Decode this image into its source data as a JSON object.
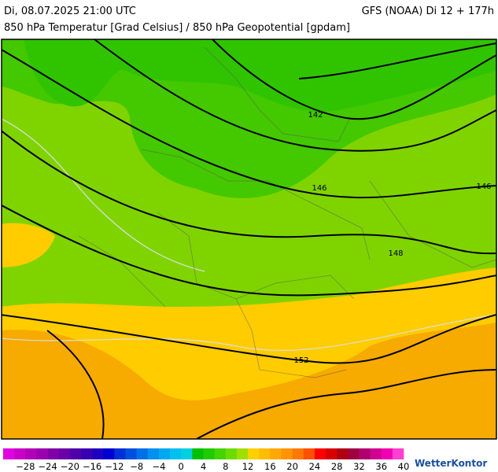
{
  "header": {
    "left": "Di, 08.07.2025 21:00 UTC",
    "right": "GFS (NOAA) Di 12 + 177h",
    "subtitle": "850 hPa Temperatur [Grad Celsius] / 850 hPa Geopotential [gpdam]"
  },
  "map": {
    "contour_labels": [
      "142",
      "146",
      "146",
      "148",
      "152"
    ]
  },
  "colorbar": {
    "labels": [
      "−28",
      "−24",
      "−20",
      "−16",
      "−12",
      "−8",
      "−4",
      "0",
      "4",
      "8",
      "12",
      "16",
      "20",
      "24",
      "28",
      "32",
      "36",
      "40"
    ],
    "colors": [
      "#e000e0",
      "#c800c8",
      "#b000b8",
      "#9a00b0",
      "#8000a8",
      "#6a00a8",
      "#5000a8",
      "#3800b0",
      "#2000c0",
      "#0000d0",
      "#0030d8",
      "#0050e0",
      "#0070e8",
      "#0090f0",
      "#00a8f0",
      "#00c0f0",
      "#00d0e0",
      "#00c000",
      "#20cc00",
      "#44d400",
      "#6cdc00",
      "#a0e000",
      "#ffd000",
      "#ffbc00",
      "#ffa800",
      "#ff9400",
      "#ff7800",
      "#ff5000",
      "#ff0000",
      "#d80000",
      "#b00010",
      "#a00040",
      "#b00070",
      "#d00090",
      "#f000b0",
      "#ff40d0"
    ],
    "logo": "WetterKontor"
  }
}
